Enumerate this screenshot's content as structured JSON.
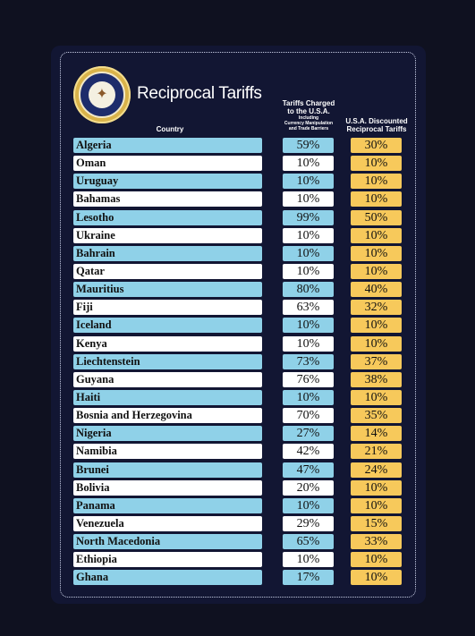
{
  "title": "Reciprocal Tariffs",
  "seal_text": "SEAL OF THE PRESIDENT OF THE UNITED STATES",
  "seal_icon": "presidential-seal-icon",
  "headers": {
    "country": "Country",
    "charged_line1": "Tariffs Charged",
    "charged_line2": "to the U.S.A.",
    "charged_sub1": "Including",
    "charged_sub2": "Currency Manipulation",
    "charged_sub3": "and Trade Barriers",
    "disc_line1": "U.S.A. Discounted",
    "disc_line2": "Reciprocal Tariffs"
  },
  "colors": {
    "background": "#0f1120",
    "board": "#121633",
    "highlight_row": "#8fd1e8",
    "plain_row": "#ffffff",
    "discount": "#f7c95b"
  },
  "rows": [
    {
      "country": "Algeria",
      "charged": "59%",
      "discounted": "30%"
    },
    {
      "country": "Oman",
      "charged": "10%",
      "discounted": "10%"
    },
    {
      "country": "Uruguay",
      "charged": "10%",
      "discounted": "10%"
    },
    {
      "country": "Bahamas",
      "charged": "10%",
      "discounted": "10%"
    },
    {
      "country": "Lesotho",
      "charged": "99%",
      "discounted": "50%"
    },
    {
      "country": "Ukraine",
      "charged": "10%",
      "discounted": "10%"
    },
    {
      "country": "Bahrain",
      "charged": "10%",
      "discounted": "10%"
    },
    {
      "country": "Qatar",
      "charged": "10%",
      "discounted": "10%"
    },
    {
      "country": "Mauritius",
      "charged": "80%",
      "discounted": "40%"
    },
    {
      "country": "Fiji",
      "charged": "63%",
      "discounted": "32%"
    },
    {
      "country": "Iceland",
      "charged": "10%",
      "discounted": "10%"
    },
    {
      "country": "Kenya",
      "charged": "10%",
      "discounted": "10%"
    },
    {
      "country": "Liechtenstein",
      "charged": "73%",
      "discounted": "37%"
    },
    {
      "country": "Guyana",
      "charged": "76%",
      "discounted": "38%"
    },
    {
      "country": "Haiti",
      "charged": "10%",
      "discounted": "10%"
    },
    {
      "country": "Bosnia and Herzegovina",
      "charged": "70%",
      "discounted": "35%"
    },
    {
      "country": "Nigeria",
      "charged": "27%",
      "discounted": "14%"
    },
    {
      "country": "Namibia",
      "charged": "42%",
      "discounted": "21%"
    },
    {
      "country": "Brunei",
      "charged": "47%",
      "discounted": "24%"
    },
    {
      "country": "Bolivia",
      "charged": "20%",
      "discounted": "10%"
    },
    {
      "country": "Panama",
      "charged": "10%",
      "discounted": "10%"
    },
    {
      "country": "Venezuela",
      "charged": "29%",
      "discounted": "15%"
    },
    {
      "country": "North Macedonia",
      "charged": "65%",
      "discounted": "33%"
    },
    {
      "country": "Ethiopia",
      "charged": "10%",
      "discounted": "10%"
    },
    {
      "country": "Ghana",
      "charged": "17%",
      "discounted": "10%"
    }
  ]
}
